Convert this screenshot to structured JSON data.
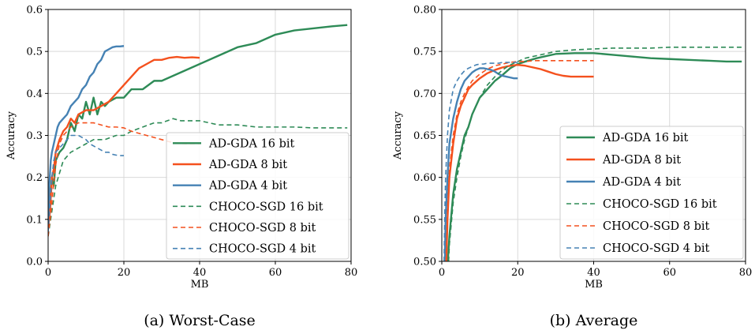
{
  "chart_data": [
    {
      "type": "line",
      "title": "",
      "caption": "(a) Worst-Case",
      "xlabel": "MB",
      "ylabel": "Accuracy",
      "xlim": [
        0,
        80
      ],
      "ylim": [
        0.0,
        0.6
      ],
      "xticks": [
        0,
        20,
        40,
        60,
        80
      ],
      "yticks": [
        0.0,
        0.1,
        0.2,
        0.3,
        0.4,
        0.5,
        0.6
      ],
      "ytick_format": "1",
      "grid": true,
      "legend_position": "lower-right",
      "series": [
        {
          "name": "AD-GDA 16 bit",
          "color": "#2e8b57",
          "style": "solid",
          "x": [
            0,
            0.5,
            1,
            1.5,
            2,
            3,
            4,
            5,
            6,
            7,
            8,
            9,
            10,
            11,
            12,
            13,
            14,
            15,
            16,
            18,
            20,
            22,
            25,
            28,
            30,
            35,
            40,
            45,
            50,
            55,
            60,
            65,
            70,
            75,
            79
          ],
          "y": [
            0.1,
            0.14,
            0.2,
            0.18,
            0.24,
            0.26,
            0.27,
            0.29,
            0.33,
            0.31,
            0.35,
            0.34,
            0.38,
            0.35,
            0.39,
            0.35,
            0.38,
            0.37,
            0.38,
            0.39,
            0.39,
            0.41,
            0.41,
            0.43,
            0.43,
            0.45,
            0.47,
            0.49,
            0.51,
            0.52,
            0.54,
            0.55,
            0.555,
            0.56,
            0.563
          ]
        },
        {
          "name": "AD-GDA 8 bit",
          "color": "#f4511e",
          "style": "solid",
          "x": [
            0,
            0.5,
            1,
            1.5,
            2,
            3,
            4,
            5,
            6,
            7,
            8,
            10,
            12,
            14,
            16,
            18,
            20,
            22,
            24,
            26,
            28,
            30,
            32,
            34,
            36,
            38,
            40
          ],
          "y": [
            0.08,
            0.12,
            0.2,
            0.22,
            0.26,
            0.29,
            0.31,
            0.32,
            0.34,
            0.33,
            0.35,
            0.36,
            0.36,
            0.37,
            0.38,
            0.4,
            0.42,
            0.44,
            0.46,
            0.47,
            0.48,
            0.48,
            0.485,
            0.487,
            0.485,
            0.486,
            0.485
          ]
        },
        {
          "name": "AD-GDA 4 bit",
          "color": "#4682b4",
          "style": "solid",
          "x": [
            0,
            0.3,
            0.7,
            1,
            1.5,
            2,
            2.5,
            3,
            4,
            5,
            6,
            7,
            8,
            9,
            10,
            11,
            12,
            13,
            14,
            15,
            16,
            17,
            18,
            19,
            20
          ],
          "y": [
            0.1,
            0.18,
            0.24,
            0.26,
            0.28,
            0.3,
            0.32,
            0.33,
            0.34,
            0.35,
            0.37,
            0.38,
            0.39,
            0.41,
            0.42,
            0.44,
            0.45,
            0.47,
            0.48,
            0.5,
            0.505,
            0.51,
            0.512,
            0.512,
            0.513
          ]
        },
        {
          "name": "CHOCO-SGD 16 bit",
          "color": "#2e8b57",
          "style": "dashed",
          "x": [
            0,
            1,
            2,
            3,
            4,
            5,
            6,
            8,
            10,
            12,
            15,
            18,
            20,
            22,
            25,
            28,
            30,
            33,
            35,
            38,
            40,
            45,
            50,
            55,
            60,
            65,
            70,
            75,
            79
          ],
          "y": [
            0.06,
            0.12,
            0.18,
            0.21,
            0.24,
            0.25,
            0.26,
            0.27,
            0.28,
            0.29,
            0.29,
            0.3,
            0.3,
            0.31,
            0.32,
            0.33,
            0.33,
            0.34,
            0.335,
            0.335,
            0.335,
            0.325,
            0.325,
            0.32,
            0.32,
            0.32,
            0.318,
            0.318,
            0.318
          ]
        },
        {
          "name": "CHOCO-SGD 8 bit",
          "color": "#f4511e",
          "style": "dashed",
          "x": [
            0,
            0.5,
            1,
            1.5,
            2,
            3,
            4,
            5,
            6,
            7,
            8,
            10,
            12,
            14,
            16,
            18,
            20,
            22,
            24,
            26,
            28,
            30,
            32,
            34,
            36,
            38,
            40
          ],
          "y": [
            0.06,
            0.1,
            0.14,
            0.19,
            0.23,
            0.28,
            0.3,
            0.31,
            0.32,
            0.325,
            0.33,
            0.33,
            0.33,
            0.325,
            0.32,
            0.32,
            0.318,
            0.31,
            0.305,
            0.3,
            0.295,
            0.29,
            0.285,
            0.282,
            0.28,
            0.28,
            0.28
          ]
        },
        {
          "name": "CHOCO-SGD 4 bit",
          "color": "#4682b4",
          "style": "dashed",
          "x": [
            0,
            0.5,
            1,
            1.5,
            2,
            3,
            4,
            5,
            6,
            7,
            8,
            9,
            10,
            11,
            12,
            13,
            14,
            15,
            16,
            17,
            18,
            19,
            20
          ],
          "y": [
            0.07,
            0.14,
            0.2,
            0.24,
            0.26,
            0.27,
            0.28,
            0.29,
            0.3,
            0.3,
            0.3,
            0.295,
            0.29,
            0.28,
            0.275,
            0.27,
            0.265,
            0.26,
            0.26,
            0.255,
            0.253,
            0.252,
            0.252
          ]
        }
      ]
    },
    {
      "type": "line",
      "title": "",
      "caption": "(b) Average",
      "xlabel": "MB",
      "ylabel": "Accuracy",
      "xlim": [
        0,
        80
      ],
      "ylim": [
        0.5,
        0.8
      ],
      "xticks": [
        0,
        20,
        40,
        60,
        80
      ],
      "yticks": [
        0.5,
        0.55,
        0.6,
        0.65,
        0.7,
        0.75,
        0.8
      ],
      "ytick_format": "2",
      "grid": true,
      "legend_position": "lower-right",
      "series": [
        {
          "name": "AD-GDA 16 bit",
          "color": "#2e8b57",
          "style": "solid",
          "x": [
            1.6,
            2,
            3,
            4,
            5,
            6,
            7,
            8,
            10,
            12,
            14,
            16,
            18,
            20,
            22,
            25,
            28,
            30,
            35,
            40,
            45,
            50,
            55,
            60,
            65,
            70,
            75,
            79
          ],
          "y": [
            0.5,
            0.53,
            0.58,
            0.61,
            0.63,
            0.65,
            0.66,
            0.675,
            0.695,
            0.705,
            0.715,
            0.722,
            0.73,
            0.735,
            0.738,
            0.742,
            0.745,
            0.747,
            0.748,
            0.748,
            0.746,
            0.744,
            0.742,
            0.741,
            0.74,
            0.739,
            0.738,
            0.738
          ]
        },
        {
          "name": "AD-GDA 8 bit",
          "color": "#f4511e",
          "style": "solid",
          "x": [
            1.2,
            1.5,
            2,
            3,
            4,
            5,
            6,
            7,
            8,
            10,
            12,
            14,
            16,
            18,
            20,
            22,
            24,
            26,
            28,
            30,
            32,
            34,
            36,
            38,
            40
          ],
          "y": [
            0.5,
            0.55,
            0.6,
            0.64,
            0.67,
            0.685,
            0.695,
            0.705,
            0.71,
            0.718,
            0.724,
            0.728,
            0.731,
            0.733,
            0.734,
            0.733,
            0.731,
            0.729,
            0.726,
            0.723,
            0.721,
            0.72,
            0.72,
            0.72,
            0.72
          ]
        },
        {
          "name": "AD-GDA 4 bit",
          "color": "#4682b4",
          "style": "solid",
          "x": [
            0.8,
            1,
            1.5,
            2,
            3,
            4,
            5,
            6,
            7,
            8,
            9,
            10,
            11,
            12,
            13,
            14,
            15,
            16,
            17,
            18,
            19,
            20
          ],
          "y": [
            0.5,
            0.55,
            0.6,
            0.64,
            0.67,
            0.69,
            0.705,
            0.715,
            0.72,
            0.725,
            0.728,
            0.73,
            0.73,
            0.729,
            0.728,
            0.726,
            0.723,
            0.721,
            0.72,
            0.719,
            0.718,
            0.718
          ]
        },
        {
          "name": "CHOCO-SGD 16 bit",
          "color": "#2e8b57",
          "style": "dashed",
          "x": [
            1.8,
            2,
            3,
            4,
            5,
            6,
            7,
            8,
            10,
            12,
            14,
            16,
            18,
            20,
            22,
            25,
            28,
            30,
            35,
            40,
            45,
            50,
            55,
            60,
            65,
            70,
            75,
            79
          ],
          "y": [
            0.5,
            0.52,
            0.57,
            0.6,
            0.625,
            0.645,
            0.66,
            0.675,
            0.695,
            0.71,
            0.72,
            0.728,
            0.734,
            0.738,
            0.742,
            0.745,
            0.748,
            0.75,
            0.752,
            0.753,
            0.754,
            0.754,
            0.754,
            0.755,
            0.755,
            0.755,
            0.755,
            0.755
          ]
        },
        {
          "name": "CHOCO-SGD 8 bit",
          "color": "#f4511e",
          "style": "dashed",
          "x": [
            1.1,
            1.5,
            2,
            3,
            4,
            5,
            6,
            7,
            8,
            10,
            12,
            14,
            16,
            18,
            20,
            22,
            24,
            26,
            28,
            30,
            32,
            34,
            36,
            38,
            40
          ],
          "y": [
            0.5,
            0.56,
            0.61,
            0.65,
            0.675,
            0.69,
            0.7,
            0.708,
            0.715,
            0.723,
            0.729,
            0.733,
            0.735,
            0.737,
            0.738,
            0.738,
            0.739,
            0.739,
            0.739,
            0.739,
            0.739,
            0.739,
            0.739,
            0.739,
            0.739
          ]
        },
        {
          "name": "CHOCO-SGD 4 bit",
          "color": "#4682b4",
          "style": "dashed",
          "x": [
            0.6,
            0.8,
            1,
            1.5,
            2,
            3,
            4,
            5,
            6,
            7,
            8,
            9,
            10,
            11,
            12,
            13,
            14,
            15,
            16,
            17,
            18,
            19,
            20
          ],
          "y": [
            0.5,
            0.56,
            0.6,
            0.65,
            0.68,
            0.705,
            0.715,
            0.722,
            0.727,
            0.73,
            0.732,
            0.734,
            0.735,
            0.735,
            0.736,
            0.736,
            0.736,
            0.736,
            0.737,
            0.737,
            0.737,
            0.737,
            0.737
          ]
        }
      ]
    }
  ]
}
